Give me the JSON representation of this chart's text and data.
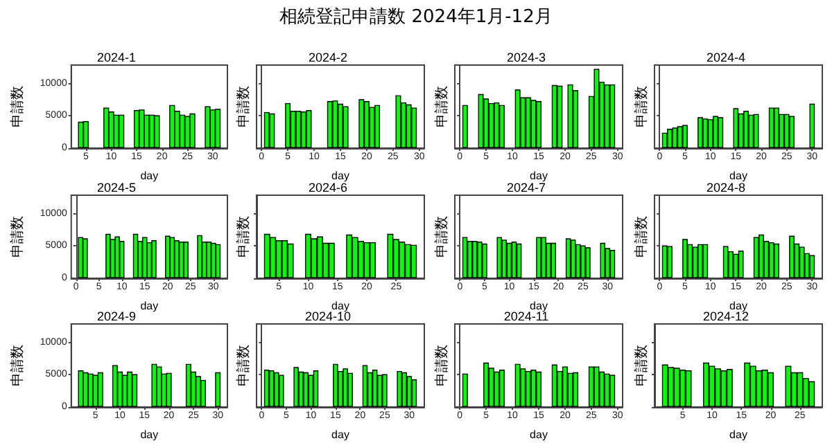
{
  "chart_data": [
    {
      "type": "bar",
      "title": "2024-1",
      "xlabel": "day",
      "ylabel": "申請数",
      "annotations": [
        "相続登記申請数 2024年1月-12月"
      ],
      "color": "#00ff00",
      "xlim": [
        2.1,
        32.9
      ],
      "xticks": [
        5,
        10,
        15,
        20,
        25,
        30
      ],
      "ylim": [
        0,
        12900
      ],
      "yticks": [
        0,
        5000,
        10000
      ],
      "x": [
        4,
        5,
        9,
        10,
        11,
        12,
        15,
        16,
        17,
        18,
        19,
        22,
        23,
        24,
        25,
        26,
        29,
        30,
        31
      ],
      "values": [
        4100,
        4200,
        6300,
        5700,
        5200,
        5200,
        5900,
        6000,
        5200,
        5200,
        5100,
        6700,
        5800,
        5200,
        5000,
        5400,
        6500,
        6000,
        6100
      ]
    },
    {
      "type": "bar",
      "title": "2024-2",
      "xlabel": "day",
      "ylabel": "申請数",
      "color": "#00ff00",
      "xlim": [
        -0.95,
        30.95
      ],
      "xticks": [
        0,
        5,
        10,
        15,
        20,
        25,
        30
      ],
      "ylim": [
        0,
        12900
      ],
      "yticks": [
        0,
        5000,
        10000
      ],
      "tick_labels": "x",
      "x": [
        1,
        2,
        5,
        6,
        7,
        8,
        9,
        13,
        14,
        15,
        16,
        19,
        20,
        21,
        22,
        26,
        27,
        28,
        29
      ],
      "values": [
        5600,
        5400,
        7000,
        5800,
        5800,
        5700,
        5900,
        7300,
        7400,
        6900,
        6500,
        7600,
        7300,
        6400,
        6700,
        8200,
        7100,
        6800,
        6300
      ]
    },
    {
      "type": "bar",
      "title": "2024-3",
      "xlabel": "day",
      "ylabel": "申請数",
      "color": "#00ff00",
      "xlim": [
        -0.95,
        30.95
      ],
      "xticks": [
        0,
        5,
        10,
        15,
        20,
        25,
        30
      ],
      "ylim": [
        0,
        12900
      ],
      "yticks": [
        0,
        5000,
        10000
      ],
      "tick_labels": "x",
      "x": [
        1,
        4,
        5,
        6,
        7,
        8,
        11,
        12,
        13,
        14,
        15,
        18,
        19,
        21,
        22,
        25,
        26,
        27,
        28,
        29
      ],
      "values": [
        6700,
        8400,
        7700,
        7000,
        7100,
        6700,
        9100,
        7900,
        7900,
        7500,
        7300,
        9800,
        9700,
        9900,
        9000,
        8100,
        12300,
        10300,
        9900,
        9900
      ]
    },
    {
      "type": "bar",
      "title": "2024-4",
      "xlabel": "day",
      "ylabel": "申請数",
      "color": "#00ff00",
      "xlim": [
        -1,
        32
      ],
      "xticks": [
        0,
        5,
        10,
        15,
        20,
        25,
        30
      ],
      "ylim": [
        0,
        12900
      ],
      "yticks": [
        0,
        5000,
        10000
      ],
      "tick_labels": "x",
      "x": [
        1,
        2,
        3,
        4,
        5,
        8,
        9,
        10,
        11,
        12,
        15,
        16,
        17,
        18,
        19,
        22,
        23,
        24,
        25,
        26,
        30
      ],
      "values": [
        2400,
        3000,
        3200,
        3400,
        3600,
        4800,
        4600,
        4500,
        5000,
        4800,
        6200,
        5400,
        5800,
        5200,
        5300,
        6300,
        6300,
        5300,
        5300,
        5000,
        6900
      ]
    },
    {
      "type": "bar",
      "title": "2024-5",
      "xlabel": "day",
      "ylabel": "申請数",
      "color": "#00ff00",
      "xlim": [
        -1.05,
        33.05
      ],
      "xticks": [
        0,
        5,
        10,
        15,
        20,
        25,
        30
      ],
      "ylim": [
        0,
        12900
      ],
      "yticks": [
        0,
        5000,
        10000
      ],
      "x": [
        1,
        2,
        7,
        8,
        9,
        10,
        13,
        14,
        15,
        16,
        17,
        20,
        21,
        22,
        23,
        24,
        27,
        28,
        29,
        30,
        31
      ],
      "values": [
        6400,
        6200,
        6900,
        6100,
        6500,
        5800,
        6900,
        5800,
        6400,
        5600,
        5900,
        6600,
        6400,
        5900,
        5700,
        5700,
        6700,
        5700,
        5700,
        5500,
        5300
      ]
    },
    {
      "type": "bar",
      "title": "2024-6",
      "xlabel": "day",
      "ylabel": "申請数",
      "color": "#00ff00",
      "xlim": [
        1.2,
        29.8
      ],
      "xticks": [
        5,
        10,
        15,
        20,
        25
      ],
      "ylim": [
        0,
        12900
      ],
      "yticks": [
        0,
        5000,
        10000
      ],
      "tick_labels": "x",
      "x": [
        3,
        4,
        5,
        6,
        7,
        10,
        11,
        12,
        13,
        14,
        17,
        18,
        19,
        20,
        21,
        24,
        25,
        26,
        27,
        28
      ],
      "values": [
        6900,
        6400,
        5900,
        5900,
        5400,
        6900,
        6200,
        6500,
        5500,
        5500,
        6800,
        6400,
        5800,
        5600,
        5600,
        6900,
        6100,
        5700,
        5300,
        5200
      ]
    },
    {
      "type": "bar",
      "title": "2024-7",
      "xlabel": "day",
      "ylabel": "申請数",
      "color": "#00ff00",
      "xlim": [
        -1.05,
        33.05
      ],
      "xticks": [
        0,
        5,
        10,
        15,
        20,
        25,
        30
      ],
      "ylim": [
        0,
        12900
      ],
      "yticks": [
        0,
        5000,
        10000
      ],
      "tick_labels": "x",
      "x": [
        1,
        2,
        3,
        4,
        5,
        8,
        9,
        10,
        11,
        12,
        16,
        17,
        18,
        19,
        22,
        23,
        24,
        25,
        26,
        29,
        30,
        31
      ],
      "values": [
        6400,
        5800,
        5800,
        5700,
        5400,
        6400,
        6000,
        5500,
        5700,
        5400,
        6400,
        6400,
        5500,
        5500,
        6200,
        6000,
        5300,
        5100,
        4800,
        5500,
        4700,
        4400
      ]
    },
    {
      "type": "bar",
      "title": "2024-8",
      "xlabel": "day",
      "ylabel": "申請数",
      "color": "#00ff00",
      "xlim": [
        -1,
        32
      ],
      "xticks": [
        0,
        5,
        10,
        15,
        20,
        25,
        30
      ],
      "ylim": [
        0,
        12900
      ],
      "yticks": [
        0,
        5000,
        10000
      ],
      "tick_labels": "x",
      "x": [
        1,
        2,
        5,
        6,
        7,
        8,
        9,
        13,
        14,
        15,
        16,
        19,
        20,
        21,
        22,
        23,
        26,
        27,
        28,
        29,
        30
      ],
      "values": [
        5100,
        5000,
        6100,
        5300,
        4900,
        5300,
        5300,
        5000,
        4200,
        3800,
        4300,
        6400,
        6800,
        5800,
        5600,
        5400,
        6600,
        5400,
        4900,
        3900,
        3600
      ]
    },
    {
      "type": "bar",
      "title": "2024-9",
      "xlabel": "day",
      "ylabel": "申請数",
      "color": "#00ff00",
      "xlim": [
        0.05,
        31.95
      ],
      "xticks": [
        5,
        10,
        15,
        20,
        25,
        30
      ],
      "ylim": [
        0,
        12900
      ],
      "yticks": [
        0,
        5000,
        10000
      ],
      "x": [
        2,
        3,
        4,
        5,
        6,
        9,
        10,
        11,
        12,
        13,
        17,
        18,
        19,
        20,
        24,
        25,
        26,
        27,
        30
      ],
      "values": [
        5700,
        5400,
        5200,
        5000,
        5400,
        6500,
        5500,
        5000,
        5500,
        5100,
        6700,
        6300,
        5200,
        5300,
        6700,
        5500,
        4800,
        4200,
        5400
      ]
    },
    {
      "type": "bar",
      "title": "2024-10",
      "xlabel": "day",
      "ylabel": "申請数",
      "color": "#00ff00",
      "xlim": [
        -1.05,
        33.05
      ],
      "xticks": [
        0,
        5,
        10,
        15,
        20,
        25,
        30
      ],
      "ylim": [
        0,
        12900
      ],
      "yticks": [
        0,
        5000,
        10000
      ],
      "tick_labels": "x",
      "x": [
        1,
        2,
        3,
        4,
        7,
        8,
        9,
        10,
        11,
        15,
        16,
        17,
        18,
        21,
        22,
        23,
        24,
        25,
        28,
        29,
        30,
        31
      ],
      "values": [
        5800,
        5700,
        5400,
        5000,
        6200,
        5500,
        5400,
        5000,
        5700,
        6700,
        5600,
        6000,
        5300,
        6500,
        5400,
        5800,
        5000,
        5100,
        5600,
        5400,
        4800,
        4300
      ]
    },
    {
      "type": "bar",
      "title": "2024-11",
      "xlabel": "day",
      "ylabel": "申請数",
      "color": "#00ff00",
      "xlim": [
        -0.95,
        30.95
      ],
      "xticks": [
        0,
        5,
        10,
        15,
        20,
        25,
        30
      ],
      "ylim": [
        0,
        12900
      ],
      "yticks": [
        0,
        5000,
        10000
      ],
      "tick_labels": "x",
      "x": [
        1,
        5,
        6,
        7,
        8,
        11,
        12,
        13,
        14,
        15,
        18,
        19,
        20,
        21,
        22,
        25,
        26,
        27,
        28,
        29
      ],
      "values": [
        5200,
        6900,
        6100,
        5500,
        5800,
        6700,
        6000,
        5600,
        5800,
        5500,
        6600,
        5600,
        6300,
        5300,
        5400,
        6300,
        6300,
        5500,
        5200,
        5000
      ]
    },
    {
      "type": "bar",
      "title": "2024-12",
      "xlabel": "day",
      "ylabel": "申請数",
      "color": "#00ff00",
      "xlim": [
        0.2,
        28.8
      ],
      "xticks": [
        5,
        10,
        15,
        20,
        25
      ],
      "ylim": [
        0,
        12900
      ],
      "yticks": [
        0,
        5000,
        10000
      ],
      "tick_labels": "x",
      "x": [
        2,
        3,
        4,
        5,
        6,
        9,
        10,
        11,
        12,
        13,
        16,
        17,
        18,
        19,
        20,
        23,
        24,
        25,
        26,
        27
      ],
      "values": [
        6600,
        6200,
        6100,
        5800,
        5700,
        6900,
        6400,
        6000,
        5700,
        5900,
        6900,
        6400,
        5700,
        5800,
        5400,
        6400,
        5400,
        5400,
        4500,
        4000
      ]
    }
  ]
}
